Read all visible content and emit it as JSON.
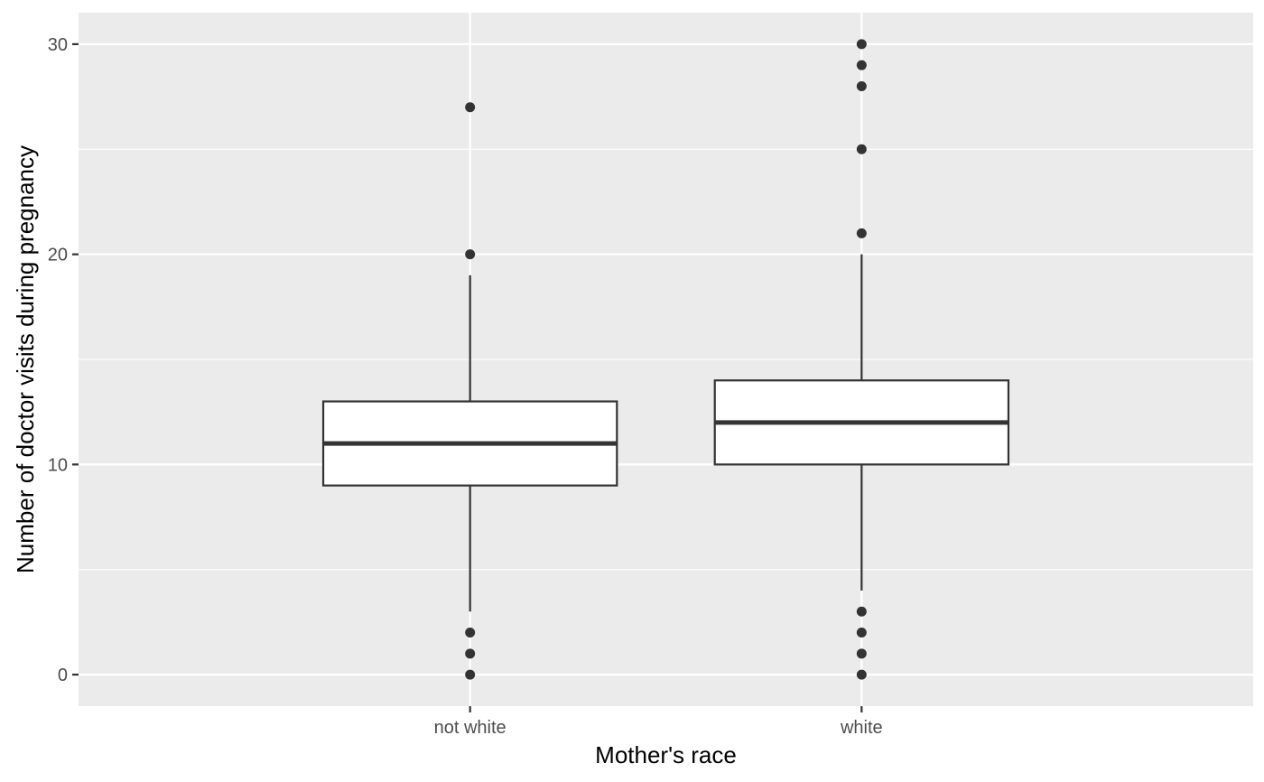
{
  "chart_data": {
    "type": "boxplot",
    "title": "",
    "xlabel": "Mother's race",
    "ylabel": "Number of doctor visits during pregnancy",
    "categories": [
      "not white",
      "white"
    ],
    "ylim": [
      -1.5,
      31.5
    ],
    "y_major_ticks": [
      0,
      10,
      20,
      30
    ],
    "y_minor_ticks": [
      5,
      15,
      25
    ],
    "grid": true,
    "legend": "none",
    "boxes": [
      {
        "category": "not white",
        "whisker_low": 3,
        "q1": 9,
        "median": 11,
        "q3": 13,
        "whisker_high": 19,
        "outliers": [
          0,
          1,
          2,
          20,
          27
        ]
      },
      {
        "category": "white",
        "whisker_low": 4,
        "q1": 10,
        "median": 12,
        "q3": 14,
        "whisker_high": 20,
        "outliers": [
          0,
          1,
          2,
          3,
          21,
          25,
          28,
          29,
          30
        ]
      }
    ],
    "colors": {
      "panel_background": "#ebebeb",
      "grid_line": "#ffffff",
      "box_fill": "#ffffff",
      "box_line": "#333333",
      "outlier": "#333333",
      "tick_mark": "#333333",
      "tick_label": "#4d4d4d",
      "axis_title": "#000000"
    }
  }
}
